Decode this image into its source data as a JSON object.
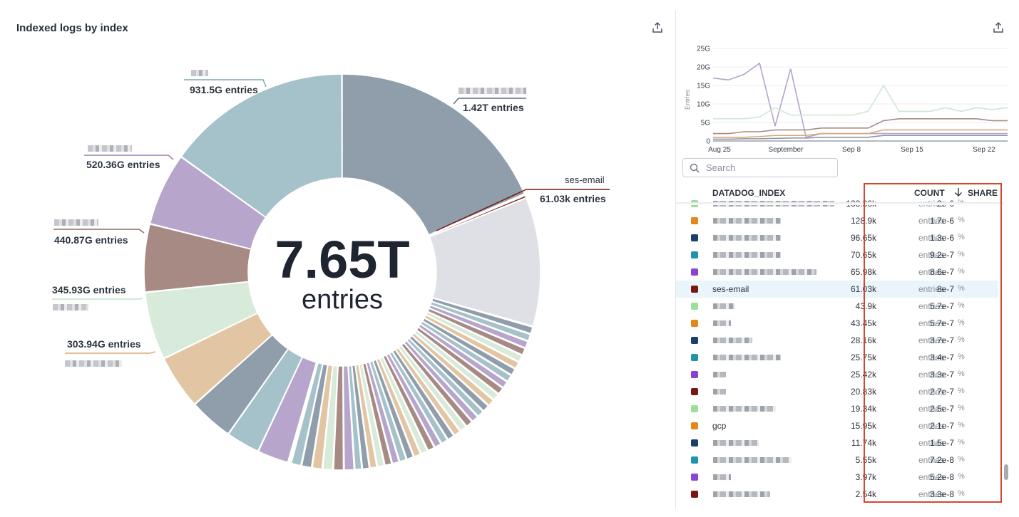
{
  "widget": {
    "title": "Indexed logs by index"
  },
  "donut": {
    "total_value": "7.65T",
    "total_unit": "entries",
    "labels": [
      {
        "value": "1.42T entries",
        "color": "#5b6f86"
      },
      {
        "name": "ses-email",
        "value": "61.03k entries",
        "color": "#7a1712"
      },
      {
        "value": "931.5G entries",
        "color": "#7aaab8"
      },
      {
        "value": "520.36G entries",
        "color": "#9a7fb5"
      },
      {
        "value": "440.87G entries",
        "color": "#8e6a64"
      },
      {
        "value": "345.93G entries",
        "color": "#bfe0c8"
      },
      {
        "value": "303.94G entries",
        "color": "#d9a877"
      }
    ]
  },
  "chart_data": [
    {
      "type": "pie",
      "title": "Indexed logs by index",
      "center_label": "7.65T entries",
      "slices": [
        {
          "label": "(redacted)",
          "value": 1420000000000,
          "display": "1.42T entries",
          "color": "#909daa"
        },
        {
          "label": "ses-email",
          "value": 61030,
          "display": "61.03k entries",
          "color": "#7a1712"
        },
        {
          "label": "(redacted)",
          "value": 931500000000,
          "display": "931.5G entries",
          "color": "#a5c2cb"
        },
        {
          "label": "(redacted)",
          "value": 520360000000,
          "display": "520.36G entries",
          "color": "#b7a5cc"
        },
        {
          "label": "(redacted)",
          "value": 440870000000,
          "display": "440.87G entries",
          "color": "#a88a84"
        },
        {
          "label": "(redacted)",
          "value": 345930000000,
          "display": "345.93G entries",
          "color": "#d8ead9"
        },
        {
          "label": "(redacted)",
          "value": 303940000000,
          "display": "303.94G entries",
          "color": "#e2c5a3"
        }
      ]
    },
    {
      "type": "line",
      "ylabel": "Entries",
      "y_ticks": [
        "0",
        "5G",
        "10G",
        "15G",
        "20G",
        "25G"
      ],
      "ylim": [
        0,
        25
      ],
      "x_ticks": [
        "Aug 25",
        "September",
        "Sep 8",
        "Sep 15",
        "Sep 22"
      ],
      "series": [
        {
          "name": "purple",
          "color": "#b5a3cc",
          "values": [
            17,
            16.5,
            18,
            21,
            4,
            19.5,
            1,
            2,
            2,
            2,
            2,
            2,
            2,
            2,
            2,
            2,
            2,
            2,
            2,
            2
          ]
        },
        {
          "name": "green",
          "color": "#cfe7d3",
          "values": [
            6,
            6,
            6,
            6.5,
            9,
            7,
            7,
            7,
            7,
            7,
            8,
            15,
            8,
            8,
            8,
            9,
            8,
            9,
            8.5,
            9
          ]
        },
        {
          "name": "brown",
          "color": "#a88a84",
          "values": [
            2,
            2,
            2.5,
            2.5,
            3,
            3,
            3,
            3.5,
            3.5,
            3.5,
            3.5,
            5.5,
            6,
            6,
            6,
            6,
            6,
            6,
            5.5,
            5.5
          ]
        },
        {
          "name": "tan",
          "color": "#d9a877",
          "values": [
            1,
            1,
            1,
            1.2,
            1.5,
            1.5,
            1.5,
            2,
            2,
            2,
            2,
            3,
            3,
            3,
            3,
            3,
            3,
            3,
            3,
            3
          ]
        },
        {
          "name": "slate",
          "color": "#8a98a8",
          "values": [
            0.5,
            0.5,
            0.6,
            0.6,
            0.7,
            0.8,
            0.8,
            1,
            1,
            1,
            1,
            1.5,
            1.5,
            1.5,
            1.5,
            1.5,
            1.5,
            1.5,
            1.5,
            1.5
          ]
        }
      ]
    }
  ],
  "search": {
    "placeholder": "Search"
  },
  "table": {
    "columns": {
      "name": "DATADOG_INDEX",
      "count": "COUNT",
      "share": "SHARE"
    },
    "sort_icon": "arrow-down-icon",
    "unit": "entries",
    "pct": "%",
    "rows": [
      {
        "color": "#9adf9a",
        "name": "",
        "count": "133.36k",
        "share": "2e-6"
      },
      {
        "color": "#e3881a",
        "name": "",
        "count": "128.9k",
        "share": "1.7e-6"
      },
      {
        "color": "#1b3f6b",
        "name": "",
        "count": "96.65k",
        "share": "1.3e-6"
      },
      {
        "color": "#1f95ad",
        "name": "",
        "count": "70.65k",
        "share": "9.2e-7"
      },
      {
        "color": "#8a43d6",
        "name": "",
        "count": "65.98k",
        "share": "8.6e-7"
      },
      {
        "color": "#7a1712",
        "name": "ses-email",
        "count": "61.03k",
        "share": "8e-7"
      },
      {
        "color": "#9adf9a",
        "name": "",
        "count": "43.9k",
        "share": "5.7e-7"
      },
      {
        "color": "#e3881a",
        "name": "",
        "count": "43.45k",
        "share": "5.7e-7"
      },
      {
        "color": "#1b3f6b",
        "name": "",
        "count": "28.16k",
        "share": "3.7e-7"
      },
      {
        "color": "#1f95ad",
        "name": "",
        "count": "25.75k",
        "share": "3.4e-7"
      },
      {
        "color": "#8a43d6",
        "name": "",
        "count": "25.42k",
        "share": "3.3e-7"
      },
      {
        "color": "#7a1712",
        "name": "",
        "count": "20.83k",
        "share": "2.7e-7"
      },
      {
        "color": "#9adf9a",
        "name": "",
        "count": "19.34k",
        "share": "2.5e-7"
      },
      {
        "color": "#e3881a",
        "name": "gcp",
        "count": "15.95k",
        "share": "2.1e-7"
      },
      {
        "color": "#1b3f6b",
        "name": "",
        "count": "11.74k",
        "share": "1.5e-7"
      },
      {
        "color": "#1f95ad",
        "name": "",
        "count": "5.55k",
        "share": "7.2e-8"
      },
      {
        "color": "#8a43d6",
        "name": "",
        "count": "3.97k",
        "share": "5.2e-8"
      },
      {
        "color": "#7a1712",
        "name": "",
        "count": "2.54k",
        "share": "3.3e-8"
      }
    ]
  }
}
